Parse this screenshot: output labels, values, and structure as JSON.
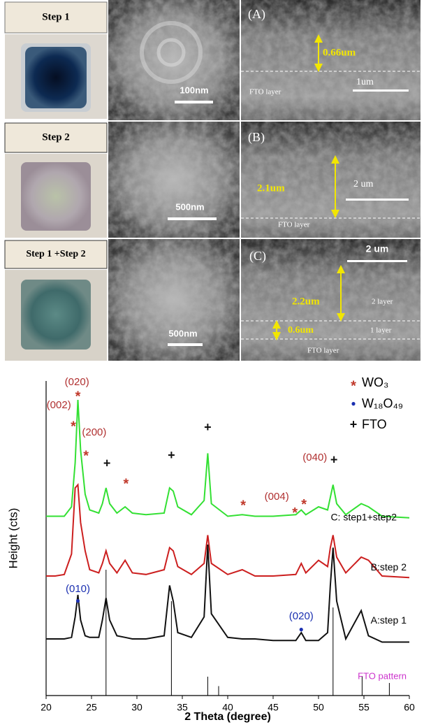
{
  "panels": [
    {
      "step": "Step 1",
      "sem_scale": "100nm",
      "label": "(A)",
      "thickness": "0.66um",
      "scale": "1um",
      "layer": "FTO layer"
    },
    {
      "step": "Step 2",
      "sem_scale": "500nm",
      "label": "(B)",
      "thickness": "2.1um",
      "scale": "2 um",
      "layer": "FTO layer"
    },
    {
      "step": "Step 1 +Step 2",
      "sem_scale": "500nm",
      "label": "(C)",
      "thickness": "2.2um",
      "thickness_2": "0.6um",
      "layer_2": "2 layer",
      "layer_1": "1 layer",
      "scale": "2 um",
      "layer": "FTO layer"
    }
  ],
  "chart_data": {
    "type": "line",
    "xlabel": "2 Theta (degree)",
    "ylabel": "Height (cts)",
    "xlim": [
      20,
      60
    ],
    "xticks": [
      20,
      25,
      30,
      35,
      40,
      45,
      50,
      55,
      60
    ],
    "ylim": [
      0,
      100
    ],
    "x": [
      20,
      21,
      22,
      22.8,
      23.2,
      23.5,
      23.8,
      24.3,
      24.8,
      25.8,
      26.2,
      26.6,
      27,
      27.8,
      28.7,
      29.5,
      31,
      33,
      33.6,
      34,
      34.5,
      36,
      37.4,
      37.8,
      38.2,
      40,
      41.6,
      43,
      45,
      47.5,
      48.1,
      48.6,
      50,
      51,
      51.3,
      51.6,
      52,
      53,
      54.7,
      55.5,
      57,
      60
    ],
    "series": [
      {
        "name": "C: step1+step2",
        "color": "#33e033",
        "values": [
          57,
          57,
          57,
          60,
          74,
          94,
          78,
          64,
          59,
          58,
          61,
          66,
          61,
          58,
          60,
          58,
          57.5,
          58,
          66,
          65,
          60,
          57.5,
          62,
          77,
          61,
          57,
          57.5,
          57,
          57,
          57.5,
          59,
          57.5,
          60,
          59,
          63,
          67,
          61,
          57.5,
          61,
          60,
          57,
          56.5
        ]
      },
      {
        "name": "B:step 2",
        "color": "#cc1f1f",
        "values": [
          38,
          38,
          38.5,
          45,
          66,
          67,
          55,
          46,
          40,
          39,
          42,
          46,
          42,
          39,
          43,
          39,
          38.5,
          40,
          47,
          46,
          41,
          38.5,
          42,
          51,
          42,
          38.5,
          40,
          38,
          38,
          38.5,
          42,
          39,
          43,
          41,
          47,
          51,
          44,
          39,
          44,
          43,
          38,
          37.5
        ]
      },
      {
        "name": "A:step 1",
        "color": "#111111",
        "values": [
          18,
          18,
          18,
          18.5,
          25,
          32,
          24,
          19,
          18.5,
          18.5,
          24,
          31,
          24,
          19,
          18.5,
          18,
          18,
          19,
          35,
          30,
          20,
          18.5,
          25,
          48,
          26,
          18.5,
          18,
          18,
          17.5,
          17.5,
          20,
          17.5,
          17.5,
          20,
          35,
          47,
          30,
          18,
          27,
          19,
          17,
          17
        ]
      }
    ],
    "reference": {
      "name": "FTO pattern",
      "color": "#cc33cc",
      "x": [
        26.6,
        33.8,
        37.8,
        39,
        51.6,
        54.8,
        57.8
      ],
      "values": [
        40,
        30,
        6,
        3,
        28,
        6,
        4
      ]
    },
    "markers": [
      {
        "name": "WO₃",
        "symbol": "*",
        "color": "#c0392b",
        "x": [
          23.5,
          23.0,
          24.4,
          28.8,
          41.7,
          47.4,
          48.4
        ],
        "y": [
          96,
          86.4,
          77.1,
          68.2,
          61.3,
          58.9,
          61.6
        ]
      },
      {
        "name": "W₁₈O₄₉",
        "symbol": "●",
        "color": "#1a2fb0",
        "x": [
          23.5,
          48.1
        ],
        "y": [
          30,
          20.9
        ]
      },
      {
        "name": "FTO",
        "symbol": "+",
        "color": "#111111",
        "x": [
          26.7,
          33.8,
          37.8,
          51.7
        ],
        "y": [
          73.6,
          76.2,
          85.1,
          74.7
        ]
      }
    ],
    "annotations": [
      {
        "text": "(020)",
        "x": 23.4,
        "y": 99.5,
        "color": "#b03030"
      },
      {
        "text": "(002)",
        "x": 21.4,
        "y": 92.2,
        "color": "#b03030"
      },
      {
        "text": "(200)",
        "x": 25.3,
        "y": 83.6,
        "color": "#b03030"
      },
      {
        "text": "(004)",
        "x": 45.4,
        "y": 63.1,
        "color": "#b03030"
      },
      {
        "text": "(040)",
        "x": 49.6,
        "y": 75.6,
        "color": "#b03030"
      },
      {
        "text": "(010)",
        "x": 23.5,
        "y": 33.8,
        "color": "#1a2fb0"
      },
      {
        "text": "(020)",
        "x": 48.1,
        "y": 25.1,
        "color": "#1a2fb0"
      }
    ]
  }
}
